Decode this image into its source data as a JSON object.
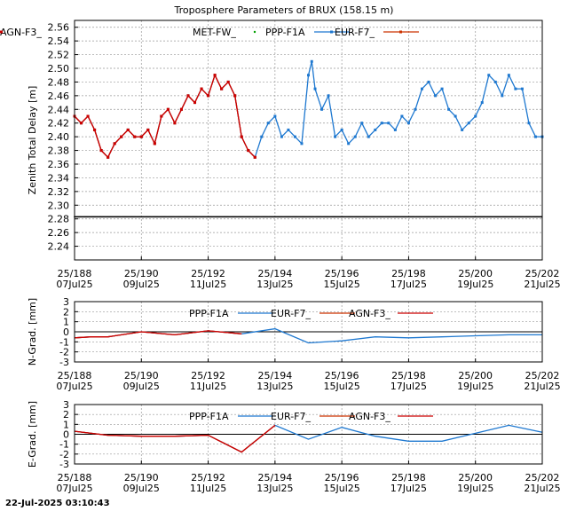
{
  "page_title": "Troposphere Parameters of BRUX (158.15 m)",
  "timestamp": "22-Jul-2025 03:10:43",
  "colors": {
    "met": "#00a000",
    "ppp": "#1e78d0",
    "eur": "#cc3300",
    "agn": "#cc0000",
    "zero_line": "#000000",
    "grid": "#999999"
  },
  "x_ticks": [
    {
      "day": 188,
      "label1": "25/188",
      "label2": "07Jul25"
    },
    {
      "day": 190,
      "label1": "25/190",
      "label2": "09Jul25"
    },
    {
      "day": 192,
      "label1": "25/192",
      "label2": "11Jul25"
    },
    {
      "day": 194,
      "label1": "25/194",
      "label2": "13Jul25"
    },
    {
      "day": 196,
      "label1": "25/196",
      "label2": "15Jul25"
    },
    {
      "day": 198,
      "label1": "25/198",
      "label2": "17Jul25"
    },
    {
      "day": 200,
      "label1": "25/200",
      "label2": "19Jul25"
    },
    {
      "day": 202,
      "label1": "25/202",
      "label2": "21Jul25"
    }
  ],
  "chart_data": [
    {
      "type": "scatter",
      "ylabel": "Zenith Total Delay [m]",
      "xlim": [
        188,
        202
      ],
      "ylim": [
        2.22,
        2.57
      ],
      "yticks": [
        2.24,
        2.26,
        2.28,
        2.3,
        2.32,
        2.34,
        2.36,
        2.38,
        2.4,
        2.42,
        2.44,
        2.46,
        2.48,
        2.5,
        2.52,
        2.54,
        2.56
      ],
      "ytick_labels": [
        "2.24",
        "2.26",
        "2.28",
        "2.30",
        "2.32",
        "2.34",
        "2.36",
        "2.38",
        "2.40",
        "2.42",
        "2.44",
        "2.46",
        "2.48",
        "2.50",
        "2.52",
        "2.54",
        "2.56"
      ],
      "grid": true,
      "legend": "top",
      "series": [
        {
          "name": "MET-FW_",
          "style": "points",
          "x": [
            188,
            202
          ],
          "y": [
            2.283,
            2.283
          ]
        },
        {
          "name": "PPP-F1A",
          "style": "line-points",
          "x": [
            188.0,
            188.2,
            188.4,
            188.6,
            188.8,
            189.0,
            189.2,
            189.4,
            189.6,
            189.8,
            190.0,
            190.2,
            190.4,
            190.6,
            190.8,
            191.0,
            191.2,
            191.4,
            191.6,
            191.8,
            192.0,
            192.2,
            192.4,
            192.6,
            192.8,
            193.0,
            193.2,
            193.4,
            193.6,
            193.8,
            194.0,
            194.2,
            194.4,
            194.6,
            194.8,
            195.0,
            195.1,
            195.2,
            195.4,
            195.6,
            195.8,
            196.0,
            196.2,
            196.4,
            196.6,
            196.8,
            197.0,
            197.2,
            197.4,
            197.6,
            197.8,
            198.0,
            198.2,
            198.4,
            198.6,
            198.8,
            199.0,
            199.2,
            199.4,
            199.6,
            199.8,
            200.0,
            200.2,
            200.4,
            200.6,
            200.8,
            201.0,
            201.2,
            201.4,
            201.6,
            201.8,
            202.0
          ],
          "y": [
            2.43,
            2.42,
            2.43,
            2.41,
            2.38,
            2.37,
            2.39,
            2.4,
            2.41,
            2.4,
            2.4,
            2.41,
            2.39,
            2.43,
            2.44,
            2.42,
            2.44,
            2.46,
            2.45,
            2.47,
            2.46,
            2.49,
            2.47,
            2.48,
            2.46,
            2.4,
            2.38,
            2.37,
            2.4,
            2.42,
            2.43,
            2.4,
            2.41,
            2.4,
            2.39,
            2.49,
            2.51,
            2.47,
            2.44,
            2.46,
            2.4,
            2.41,
            2.39,
            2.4,
            2.42,
            2.4,
            2.41,
            2.42,
            2.42,
            2.41,
            2.43,
            2.42,
            2.44,
            2.47,
            2.48,
            2.46,
            2.47,
            2.44,
            2.43,
            2.41,
            2.42,
            2.43,
            2.45,
            2.49,
            2.48,
            2.46,
            2.49,
            2.47,
            2.47,
            2.42,
            2.4,
            2.4
          ]
        },
        {
          "name": "EUR-F7_",
          "style": "line-points",
          "x": [
            188.0,
            188.2,
            188.4,
            188.6,
            188.8,
            189.0,
            189.2,
            189.4,
            189.6,
            189.8,
            190.0,
            190.2,
            190.4,
            190.6,
            190.8,
            191.0,
            191.2,
            191.4,
            191.6,
            191.8,
            192.0,
            192.2,
            192.4,
            192.6,
            192.8,
            193.0,
            193.2,
            193.4
          ],
          "y": [
            2.43,
            2.42,
            2.43,
            2.41,
            2.38,
            2.37,
            2.39,
            2.4,
            2.41,
            2.4,
            2.4,
            2.41,
            2.39,
            2.43,
            2.44,
            2.42,
            2.44,
            2.46,
            2.45,
            2.47,
            2.46,
            2.49,
            2.47,
            2.48,
            2.46,
            2.4,
            2.38,
            2.37
          ]
        },
        {
          "name": "AGN-F3_",
          "style": "line-points",
          "x": [
            188.0,
            188.2,
            188.4,
            188.6,
            188.8,
            189.0,
            189.2,
            189.4,
            189.6,
            189.8,
            190.0,
            190.2,
            190.4,
            190.6,
            190.8,
            191.0,
            191.2,
            191.4,
            191.6,
            191.8,
            192.0,
            192.2,
            192.4,
            192.6,
            192.8,
            193.0,
            193.2,
            193.4
          ],
          "y": [
            2.43,
            2.42,
            2.43,
            2.41,
            2.38,
            2.37,
            2.39,
            2.4,
            2.41,
            2.4,
            2.4,
            2.41,
            2.39,
            2.43,
            2.44,
            2.42,
            2.44,
            2.46,
            2.45,
            2.47,
            2.46,
            2.49,
            2.47,
            2.48,
            2.46,
            2.4,
            2.38,
            2.37
          ]
        }
      ]
    },
    {
      "type": "line",
      "ylabel": "N-Grad. [mm]",
      "xlim": [
        188,
        202
      ],
      "ylim": [
        -3,
        3
      ],
      "yticks": [
        -3,
        -2,
        -1,
        0,
        1,
        2,
        3
      ],
      "ytick_labels": [
        "-3",
        "-2",
        "-1",
        "0",
        "1",
        "2",
        "3"
      ],
      "grid": true,
      "legend": "top",
      "zero_line": true,
      "series": [
        {
          "name": "PPP-F1A",
          "x": [
            188,
            188.5,
            189,
            190,
            191,
            192,
            193,
            194,
            195,
            196,
            197,
            198,
            199,
            200,
            201,
            202
          ],
          "y": [
            -0.6,
            -0.5,
            -0.5,
            0.0,
            -0.3,
            0.1,
            -0.2,
            0.3,
            -1.1,
            -0.9,
            -0.5,
            -0.6,
            -0.5,
            -0.4,
            -0.3,
            -0.3
          ]
        },
        {
          "name": "EUR-F7_",
          "x": [
            188,
            188.5,
            189,
            190,
            191,
            192,
            193
          ],
          "y": [
            -0.6,
            -0.5,
            -0.5,
            0.0,
            -0.3,
            0.1,
            -0.2
          ]
        },
        {
          "name": "AGN-F3_",
          "x": [
            188,
            188.5,
            189,
            190,
            191,
            192,
            193
          ],
          "y": [
            -0.6,
            -0.5,
            -0.5,
            0.0,
            -0.3,
            0.1,
            -0.2
          ]
        }
      ]
    },
    {
      "type": "line",
      "ylabel": "E-Grad. [mm]",
      "xlim": [
        188,
        202
      ],
      "ylim": [
        -3,
        3
      ],
      "yticks": [
        -3,
        -2,
        -1,
        0,
        1,
        2,
        3
      ],
      "ytick_labels": [
        "-3",
        "-2",
        "-1",
        "0",
        "1",
        "2",
        "3"
      ],
      "grid": true,
      "legend": "top",
      "zero_line": true,
      "series": [
        {
          "name": "PPP-F1A",
          "x": [
            188,
            189,
            190,
            191,
            192,
            193,
            194,
            195,
            196,
            197,
            198,
            199,
            200,
            201,
            202
          ],
          "y": [
            0.3,
            -0.1,
            -0.2,
            -0.2,
            -0.1,
            -1.8,
            0.9,
            -0.5,
            0.7,
            -0.2,
            -0.7,
            -0.7,
            0.1,
            0.9,
            0.2
          ]
        },
        {
          "name": "EUR-F7_",
          "x": [
            188,
            189,
            190,
            191,
            192,
            193,
            194
          ],
          "y": [
            0.3,
            -0.1,
            -0.2,
            -0.2,
            -0.1,
            -1.8,
            0.9
          ]
        },
        {
          "name": "AGN-F3_",
          "x": [
            188,
            189,
            190,
            191,
            192,
            193,
            194
          ],
          "y": [
            0.3,
            -0.1,
            -0.2,
            -0.2,
            -0.1,
            -1.8,
            0.9
          ]
        }
      ]
    }
  ]
}
